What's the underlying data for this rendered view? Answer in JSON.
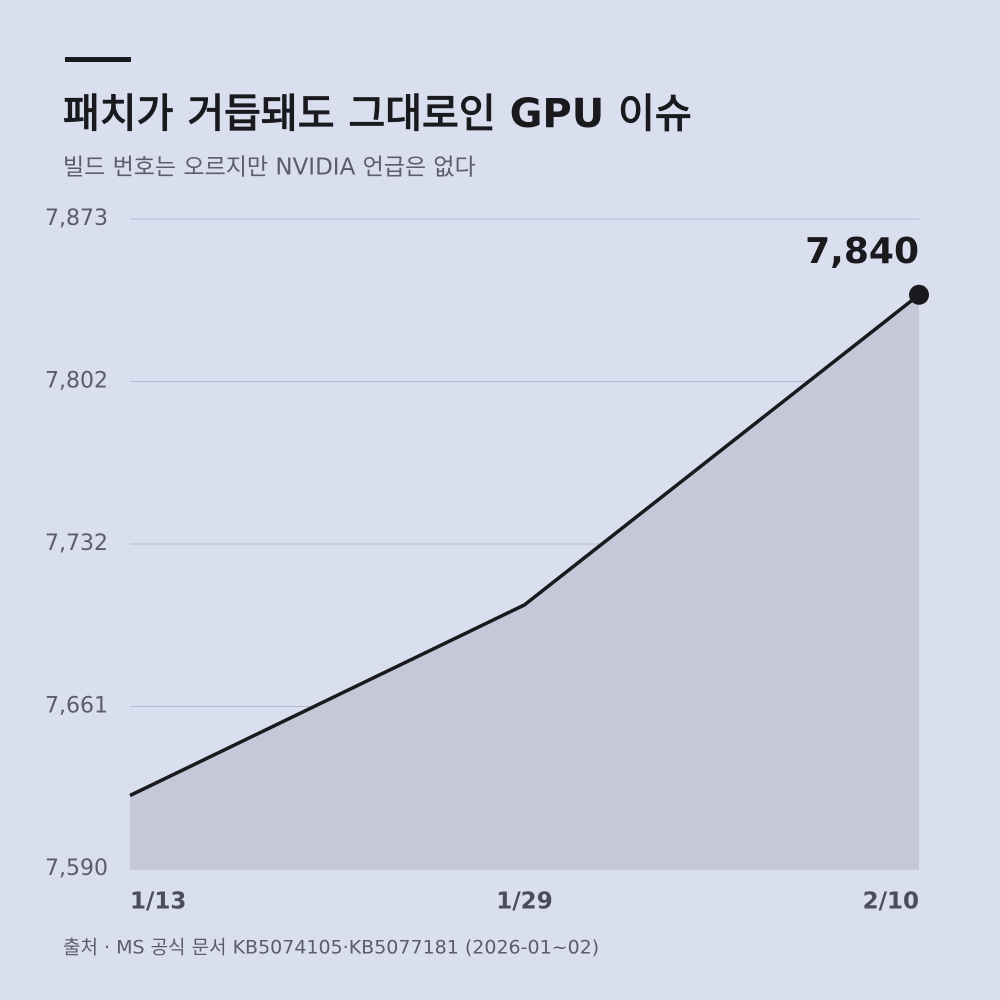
{
  "chart_data": {
    "type": "line",
    "title": "패치가 거듭돼도 그대로인 GPU 이슈",
    "subtitle": "빌드 번호는 오르지만 NVIDIA 언급은 없다",
    "source": "출처 · MS 공식 문서 KB5074105·KB5077181 (2026-01~02)",
    "categories": [
      "1/13",
      "1/29",
      "2/10"
    ],
    "values": [
      7622,
      7705,
      7840
    ],
    "value_labels": [
      null,
      null,
      "7,840"
    ],
    "color": "#1a1a1e",
    "area_color": "#c4c8d9",
    "ylim": [
      7590,
      7873
    ],
    "yticks": [
      {
        "value": 7590,
        "label": "7,590"
      },
      {
        "value": 7660.75,
        "label": "7,661"
      },
      {
        "value": 7731.5,
        "label": "7,732"
      },
      {
        "value": 7802.25,
        "label": "7,802"
      },
      {
        "value": 7873,
        "label": "7,873"
      }
    ],
    "grid": true
  }
}
